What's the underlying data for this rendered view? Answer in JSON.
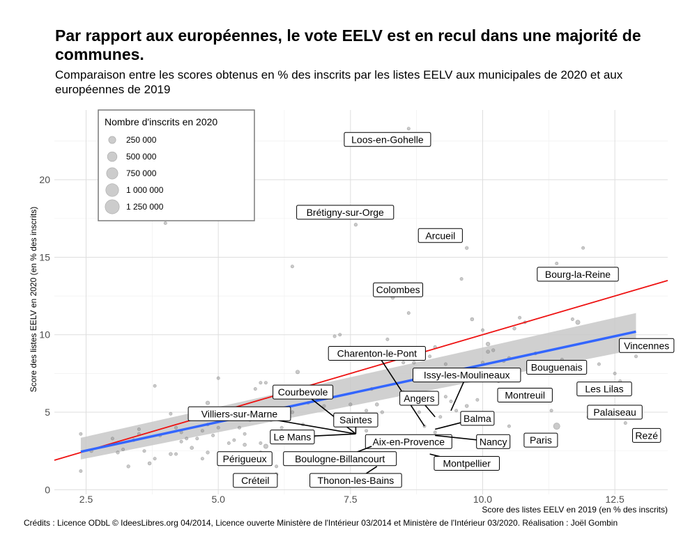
{
  "title": "Par rapport aux européennes, le vote EELV est en recul dans une majorité de communes.",
  "subtitle": "Comparaison entre les scores obtenus en % des inscrits par les listes EELV aux municipales de 2020 et aux européennes de 2019",
  "credits": "Crédits : Licence ODbL © IdeesLibres.org 04/2014, Licence ouverte Ministère de l'Intérieur 03/2014 et Ministère de l'Intérieur 03/2020. Réalisation : Joël Gombin",
  "chart_data": {
    "type": "scatter",
    "xlabel": "Score des listes EELV en 2019 (en % des inscrits)",
    "ylabel": "Score des listes EELV en 2020 (en % des inscrits)",
    "xlim": [
      1.9,
      13.5
    ],
    "ylim": [
      -0.3,
      24.5
    ],
    "x_ticks": [
      2.5,
      5.0,
      7.5,
      10.0,
      12.5
    ],
    "x_tick_labels": [
      "2.5",
      "5.0",
      "7.5",
      "10.0",
      "12.5"
    ],
    "y_ticks": [
      0,
      5,
      10,
      15,
      20
    ],
    "y_tick_labels": [
      "0",
      "5",
      "10",
      "15",
      "20"
    ],
    "grid": true,
    "legend": {
      "title": "Nombre d'inscrits en 2020",
      "position": "top-left",
      "entries": [
        {
          "label": "250 000",
          "size": 250000
        },
        {
          "label": "500 000",
          "size": 500000
        },
        {
          "label": "750 000",
          "size": 750000
        },
        {
          "label": "1 000 000",
          "size": 1000000
        },
        {
          "label": "1 250 000",
          "size": 1250000
        }
      ]
    },
    "reference_line": {
      "color": "#ee1111",
      "slope": 1,
      "intercept": 0
    },
    "trend_line": {
      "color": "#3366ff",
      "band_color": "#c8c8c8",
      "x": [
        2.4,
        12.9
      ],
      "y": [
        2.45,
        10.2
      ],
      "band_lower": [
        1.95,
        9.05
      ],
      "band_upper": [
        3.35,
        11.4
      ]
    },
    "points": [
      [
        2.4,
        3.6,
        15000
      ],
      [
        2.4,
        1.2,
        15000
      ],
      [
        2.6,
        2.5,
        20000
      ],
      [
        3.0,
        3.3,
        15000
      ],
      [
        3.1,
        2.4,
        20000
      ],
      [
        3.2,
        2.6,
        15000
      ],
      [
        3.3,
        1.5,
        20000
      ],
      [
        3.4,
        3.2,
        15000
      ],
      [
        3.5,
        3.6,
        15000
      ],
      [
        3.5,
        3.9,
        15000
      ],
      [
        3.6,
        2.5,
        15000
      ],
      [
        3.7,
        1.7,
        25000
      ],
      [
        3.8,
        2.0,
        15000
      ],
      [
        3.8,
        6.7,
        15000
      ],
      [
        3.9,
        3.5,
        15000
      ],
      [
        4.0,
        17.2,
        15000
      ],
      [
        4.1,
        4.9,
        15000
      ],
      [
        4.1,
        2.3,
        25000
      ],
      [
        4.2,
        2.3,
        15000
      ],
      [
        4.2,
        4.0,
        15000
      ],
      [
        4.3,
        3.7,
        15000
      ],
      [
        4.3,
        3.1,
        15000
      ],
      [
        4.4,
        3.3,
        15000
      ],
      [
        4.5,
        2.7,
        25000
      ],
      [
        4.6,
        3.3,
        15000
      ],
      [
        4.7,
        2.0,
        15000
      ],
      [
        4.7,
        3.8,
        15000
      ],
      [
        4.8,
        4.2,
        15000
      ],
      [
        4.8,
        2.4,
        20000
      ],
      [
        4.8,
        5.6,
        40000
      ],
      [
        4.9,
        4.8,
        15000
      ],
      [
        4.9,
        3.5,
        15000
      ],
      [
        5.0,
        7.2,
        15000
      ],
      [
        5.0,
        4.0,
        15000
      ],
      [
        5.1,
        5.0,
        20000
      ],
      [
        5.2,
        3.0,
        15000
      ],
      [
        5.3,
        3.2,
        15000
      ],
      [
        5.4,
        4.0,
        15000
      ],
      [
        5.4,
        5.0,
        15000
      ],
      [
        5.5,
        3.6,
        15000
      ],
      [
        5.5,
        2.9,
        25000
      ],
      [
        5.6,
        4.5,
        15000
      ],
      [
        5.7,
        6.5,
        15000
      ],
      [
        5.8,
        6.9,
        15000
      ],
      [
        5.8,
        3.0,
        15000
      ],
      [
        5.8,
        2.4,
        15000
      ],
      [
        5.9,
        6.9,
        15000
      ],
      [
        5.9,
        2.8,
        60000
      ],
      [
        6.0,
        4.5,
        15000
      ],
      [
        6.1,
        1.5,
        15000
      ],
      [
        6.1,
        1.0,
        25000
      ],
      [
        6.2,
        4.0,
        15000
      ],
      [
        6.3,
        6.4,
        15000
      ],
      [
        6.4,
        14.4,
        15000
      ],
      [
        6.4,
        5.0,
        20000
      ],
      [
        6.5,
        7.6,
        35000
      ],
      [
        6.6,
        4.2,
        15000
      ],
      [
        6.7,
        5.6,
        15000
      ],
      [
        6.8,
        3.4,
        20000
      ],
      [
        7.0,
        5.4,
        20000
      ],
      [
        7.0,
        6.0,
        15000
      ],
      [
        7.2,
        9.9,
        15000
      ],
      [
        7.3,
        10.0,
        15000
      ],
      [
        7.5,
        5.5,
        20000
      ],
      [
        7.6,
        17.1,
        20000
      ],
      [
        7.8,
        5.1,
        15000
      ],
      [
        7.8,
        3.8,
        15000
      ],
      [
        7.9,
        6.5,
        20000
      ],
      [
        8.0,
        5.5,
        25000
      ],
      [
        8.1,
        5.0,
        20000
      ],
      [
        8.1,
        3.2,
        15000
      ],
      [
        8.2,
        9.7,
        15000
      ],
      [
        8.3,
        12.4,
        30000
      ],
      [
        8.5,
        8.2,
        15000
      ],
      [
        8.5,
        6.3,
        15000
      ],
      [
        8.6,
        23.3,
        15000
      ],
      [
        8.6,
        11.4,
        15000
      ],
      [
        8.7,
        8.7,
        15000
      ],
      [
        8.7,
        8.2,
        20000
      ],
      [
        8.8,
        5.0,
        15000
      ],
      [
        8.8,
        7.5,
        15000
      ],
      [
        8.9,
        4.1,
        15000
      ],
      [
        9.0,
        8.6,
        15000
      ],
      [
        9.0,
        6.1,
        20000
      ],
      [
        9.1,
        9.2,
        20000
      ],
      [
        9.1,
        3.7,
        15000
      ],
      [
        9.2,
        4.7,
        15000
      ],
      [
        9.3,
        8.1,
        15000
      ],
      [
        9.3,
        6.0,
        15000
      ],
      [
        9.4,
        5.7,
        15000
      ],
      [
        9.5,
        7.6,
        15000
      ],
      [
        9.5,
        5.1,
        15000
      ],
      [
        9.6,
        13.6,
        15000
      ],
      [
        9.7,
        15.6,
        20000
      ],
      [
        9.7,
        5.4,
        25000
      ],
      [
        9.8,
        11.0,
        25000
      ],
      [
        9.9,
        5.8,
        15000
      ],
      [
        10.0,
        10.3,
        15000
      ],
      [
        10.0,
        8.2,
        15000
      ],
      [
        10.1,
        8.9,
        25000
      ],
      [
        10.1,
        9.4,
        40000
      ],
      [
        10.2,
        9.0,
        20000
      ],
      [
        10.3,
        7.0,
        15000
      ],
      [
        10.4,
        8.3,
        15000
      ],
      [
        10.5,
        8.5,
        15000
      ],
      [
        10.5,
        4.1,
        15000
      ],
      [
        10.6,
        10.4,
        20000
      ],
      [
        10.7,
        11.1,
        15000
      ],
      [
        10.8,
        10.8,
        15000
      ],
      [
        11.0,
        8.8,
        20000
      ],
      [
        11.2,
        6.0,
        15000
      ],
      [
        11.3,
        5.1,
        15000
      ],
      [
        11.4,
        14.6,
        15000
      ],
      [
        11.4,
        4.1,
        180000
      ],
      [
        11.5,
        8.4,
        15000
      ],
      [
        11.7,
        11.0,
        15000
      ],
      [
        11.8,
        10.8,
        60000
      ],
      [
        11.9,
        15.6,
        15000
      ],
      [
        12.0,
        4.7,
        15000
      ],
      [
        12.1,
        13.8,
        15000
      ],
      [
        12.2,
        8.1,
        15000
      ],
      [
        12.5,
        7.5,
        15000
      ],
      [
        12.6,
        7.0,
        15000
      ],
      [
        12.7,
        4.3,
        15000
      ],
      [
        12.9,
        9.6,
        20000
      ],
      [
        12.9,
        8.6,
        15000
      ]
    ],
    "labels": [
      {
        "text": "Loos-en-Gohelle",
        "x": 8.2,
        "y": 22.6
      },
      {
        "text": "Brétigny-sur-Orge",
        "x": 7.4,
        "y": 17.9
      },
      {
        "text": "Arcueil",
        "x": 9.2,
        "y": 16.4
      },
      {
        "text": "Bourg-la-Reine",
        "x": 11.8,
        "y": 13.9
      },
      {
        "text": "Colombes",
        "x": 8.4,
        "y": 12.9
      },
      {
        "text": "Vincennes",
        "x": 13.1,
        "y": 9.3
      },
      {
        "text": "Charenton-le-Pont",
        "x": 8.0,
        "y": 8.8,
        "pt": [
          8.9,
          4.1
        ]
      },
      {
        "text": "Bouguenais",
        "x": 11.4,
        "y": 7.9
      },
      {
        "text": "Issy-les-Moulineaux",
        "x": 9.7,
        "y": 7.4,
        "pt": [
          9.4,
          5.1
        ]
      },
      {
        "text": "Les Lilas",
        "x": 12.3,
        "y": 6.5
      },
      {
        "text": "Courbevole",
        "x": 6.6,
        "y": 6.3,
        "pt": [
          7.6,
          3.6
        ]
      },
      {
        "text": "Montreuil",
        "x": 10.8,
        "y": 6.1
      },
      {
        "text": "Angers",
        "x": 8.8,
        "y": 5.9,
        "pt": [
          9.1,
          4.7
        ]
      },
      {
        "text": "Villiers-sur-Marne",
        "x": 5.4,
        "y": 4.9,
        "pt": [
          7.6,
          3.6
        ]
      },
      {
        "text": "Palaiseau",
        "x": 12.5,
        "y": 5.0
      },
      {
        "text": "Balma",
        "x": 9.9,
        "y": 4.6,
        "pt": [
          9.1,
          3.9
        ]
      },
      {
        "text": "Saintes",
        "x": 7.6,
        "y": 4.5,
        "pt": [
          7.6,
          3.6
        ]
      },
      {
        "text": "Le Mans",
        "x": 6.4,
        "y": 3.4,
        "pt": [
          7.6,
          3.6
        ]
      },
      {
        "text": "Rezé",
        "x": 13.1,
        "y": 3.5
      },
      {
        "text": "Aix-en-Provence",
        "x": 8.6,
        "y": 3.1,
        "pt": [
          7.9,
          3.5
        ]
      },
      {
        "text": "Nancy",
        "x": 10.2,
        "y": 3.1,
        "pt": [
          9.1,
          3.5
        ]
      },
      {
        "text": "Paris",
        "x": 11.1,
        "y": 3.2
      },
      {
        "text": "Périgueux",
        "x": 5.5,
        "y": 2.0,
        "pt": [
          6.0,
          2.0
        ]
      },
      {
        "text": "Boulogne-Billancourt",
        "x": 7.3,
        "y": 2.0,
        "pt": [
          7.9,
          2.8
        ]
      },
      {
        "text": "Montpellier",
        "x": 9.7,
        "y": 1.7,
        "pt": [
          9.0,
          2.3
        ]
      },
      {
        "text": "Créteil",
        "x": 5.7,
        "y": 0.6,
        "pt": [
          6.1,
          1.0
        ]
      },
      {
        "text": "Thonon-les-Bains",
        "x": 7.6,
        "y": 0.6,
        "pt": [
          8.0,
          1.5
        ]
      }
    ]
  }
}
